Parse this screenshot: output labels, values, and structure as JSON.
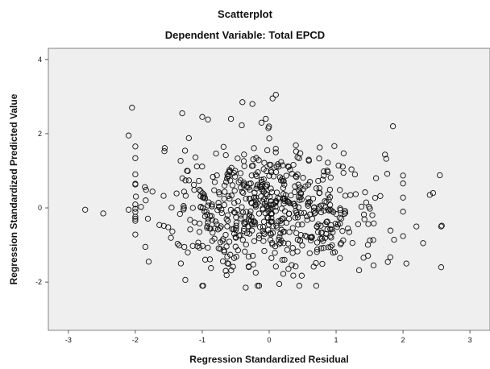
{
  "chart_data": {
    "type": "scatter",
    "title": "Scatterplot",
    "subtitle": "Dependent Variable: Total EPCD",
    "xlabel": "Regression Standardized Residual",
    "ylabel": "Regression Standardized Predicted Value",
    "xlim": [
      -3.3,
      3.3
    ],
    "ylim": [
      -3.3,
      4.3
    ],
    "xticks": [
      -3,
      -2,
      -1,
      0,
      1,
      2,
      3
    ],
    "yticks": [
      -2,
      0,
      2,
      4
    ],
    "grid": false,
    "plot_background": "#efefef",
    "marker_color": "#111111",
    "marker": "open-circle",
    "n_points": 640,
    "spread_x": 0.85,
    "spread_y": 0.85,
    "highlight_points": [
      {
        "x": -2.75,
        "y": -0.05
      },
      {
        "x": -2.48,
        "y": -0.15
      },
      {
        "x": -2.1,
        "y": -0.05
      },
      {
        "x": -2.05,
        "y": 2.7
      },
      {
        "x": -2.1,
        "y": 1.95
      },
      {
        "x": -1.85,
        "y": -1.05
      },
      {
        "x": -1.8,
        "y": -1.45
      },
      {
        "x": -1.3,
        "y": 2.55
      },
      {
        "x": -1.0,
        "y": 2.45
      },
      {
        "x": -0.4,
        "y": 2.85
      },
      {
        "x": -0.25,
        "y": 2.8
      },
      {
        "x": 0.05,
        "y": 2.95
      },
      {
        "x": 0.1,
        "y": 3.05
      },
      {
        "x": -0.05,
        "y": 2.4
      },
      {
        "x": -0.15,
        "y": -2.1
      },
      {
        "x": -1.0,
        "y": -2.1
      },
      {
        "x": -0.35,
        "y": -2.15
      },
      {
        "x": 0.45,
        "y": -2.1
      },
      {
        "x": 0.15,
        "y": -2.05
      },
      {
        "x": 1.85,
        "y": 2.2
      },
      {
        "x": 2.55,
        "y": 0.88
      },
      {
        "x": 2.45,
        "y": 0.4
      },
      {
        "x": 2.4,
        "y": 0.35
      },
      {
        "x": 2.57,
        "y": -0.5
      },
      {
        "x": 2.58,
        "y": -0.48
      },
      {
        "x": 2.57,
        "y": -1.6
      },
      {
        "x": 2.3,
        "y": -0.95
      },
      {
        "x": 2.2,
        "y": -0.5
      },
      {
        "x": 2.05,
        "y": -1.5
      }
    ]
  }
}
